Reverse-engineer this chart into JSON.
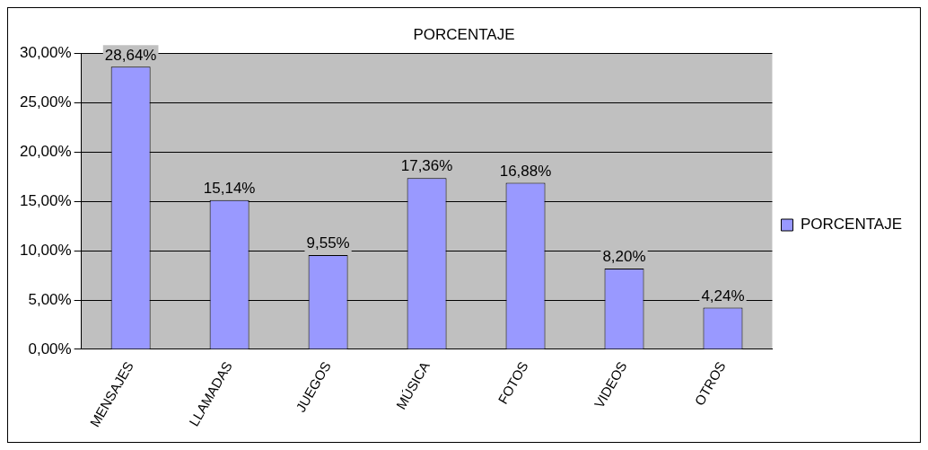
{
  "chart_data": {
    "type": "bar",
    "title": "PORCENTAJE",
    "categories": [
      "MENSAJES",
      "LLAMADAS",
      "JUEGOS",
      "MÚSICA",
      "FOTOS",
      "VIDEOS",
      "OTROS"
    ],
    "series": [
      {
        "name": "PORCENTAJE",
        "color": "#9999ff",
        "values": [
          28.64,
          15.14,
          9.55,
          17.36,
          16.88,
          8.2,
          4.24
        ],
        "value_labels": [
          "28,64%",
          "15,14%",
          "9,55%",
          "17,36%",
          "16,88%",
          "8,20%",
          "4,24%"
        ]
      }
    ],
    "ylim": [
      0,
      30
    ],
    "yticks": [
      {
        "value": 0,
        "label": "0,00%"
      },
      {
        "value": 5,
        "label": "5,00%"
      },
      {
        "value": 10,
        "label": "10,00%"
      },
      {
        "value": 15,
        "label": "15,00%"
      },
      {
        "value": 20,
        "label": "20,00%"
      },
      {
        "value": 25,
        "label": "25,00%"
      },
      {
        "value": 30,
        "label": "30,00%"
      }
    ],
    "grid": "y",
    "legend": "right"
  }
}
